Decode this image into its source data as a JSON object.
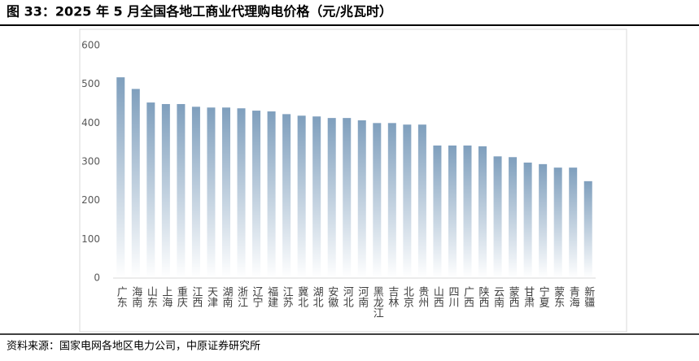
{
  "chart_data": {
    "type": "bar",
    "title": "图 33：2025 年 5 月全国各地工商业代理购电价格（元/兆瓦时）",
    "source": "资料来源：国家电网各地区电力公司，中原证券研究所",
    "categories": [
      "广东",
      "海南",
      "山东",
      "上海",
      "重庆",
      "江西",
      "天津",
      "湖南",
      "浙江",
      "辽宁",
      "福建",
      "江苏",
      "冀北",
      "湖北",
      "安徽",
      "河北",
      "河南",
      "黑龙江",
      "吉林",
      "北京",
      "贵州",
      "山西",
      "四川",
      "广西",
      "陕西",
      "云南",
      "蒙西",
      "甘肃",
      "宁夏",
      "蒙东",
      "青海",
      "新疆"
    ],
    "values": [
      518,
      488,
      453,
      449,
      449,
      442,
      440,
      440,
      438,
      432,
      430,
      423,
      419,
      417,
      413,
      413,
      407,
      400,
      400,
      396,
      396,
      342,
      342,
      342,
      340,
      314,
      312,
      298,
      294,
      285,
      285,
      250
    ],
    "color": "#7f9fbd",
    "ylim": [
      0,
      600
    ],
    "yticks": [
      0,
      100,
      200,
      300,
      400,
      500,
      600
    ],
    "grid": false
  }
}
